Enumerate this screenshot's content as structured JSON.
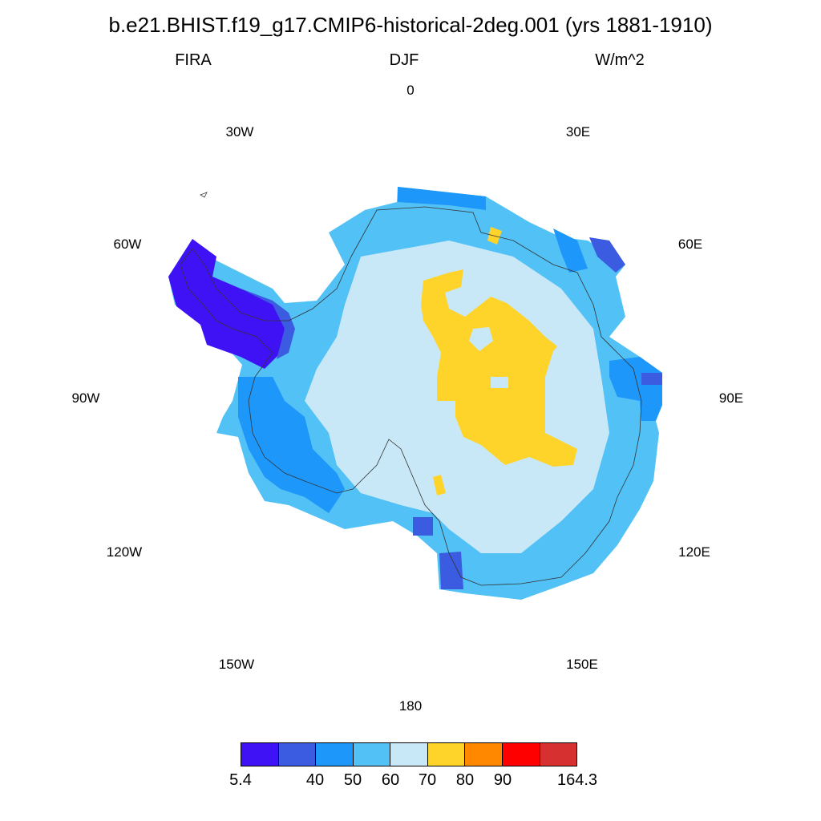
{
  "title": "b.e21.BHIST.f19_g17.CMIP6-historical-2deg.001 (yrs 1881-1910)",
  "variable": "FIRA",
  "season": "DJF",
  "units": "W/m^2",
  "longitude_labels": [
    "0",
    "30E",
    "60E",
    "90E",
    "120E",
    "150E",
    "180",
    "150W",
    "120W",
    "90W",
    "60W",
    "30W"
  ],
  "colorbar": {
    "colors": [
      "#3f12f5",
      "#3b5be0",
      "#1e97fa",
      "#52c1f5",
      "#c8e8f7",
      "#ffd42a",
      "#ff8800",
      "#ff0000",
      "#d63030"
    ],
    "labels": [
      "5.4",
      "40",
      "50",
      "60",
      "70",
      "80",
      "90",
      "164.3"
    ]
  }
}
